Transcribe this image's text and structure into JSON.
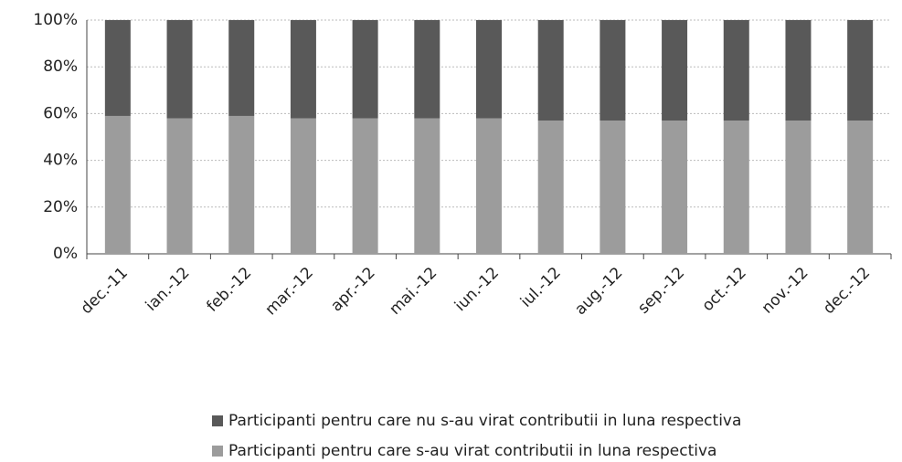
{
  "chart_data": {
    "type": "stacked_bar",
    "categories": [
      "dec.-11",
      "ian.-12",
      "feb.-12",
      "mar.-12",
      "apr.-12",
      "mai.-12",
      "iun.-12",
      "iul.-12",
      "aug.-12",
      "sep.-12",
      "oct.-12",
      "nov.-12",
      "dec.-12"
    ],
    "series": [
      {
        "name": "Participanti pentru care s-au virat contributii in luna respectiva",
        "color": "#9c9c9c",
        "values": [
          59,
          58,
          59,
          58,
          58,
          58,
          58,
          57,
          57,
          57,
          57,
          57,
          57
        ]
      },
      {
        "name": "Participanti pentru care nu s-au virat contributii in luna respectiva",
        "color": "#595959",
        "values": [
          41,
          42,
          41,
          42,
          42,
          42,
          42,
          43,
          43,
          43,
          43,
          43,
          43
        ]
      }
    ],
    "ylim": [
      0,
      100
    ],
    "yticks": [
      {
        "value": 0,
        "label": "0%"
      },
      {
        "value": 20,
        "label": "20%"
      },
      {
        "value": 40,
        "label": "40%"
      },
      {
        "value": 60,
        "label": "60%"
      },
      {
        "value": 80,
        "label": "80%"
      },
      {
        "value": 100,
        "label": "100%"
      }
    ],
    "grid": true
  }
}
